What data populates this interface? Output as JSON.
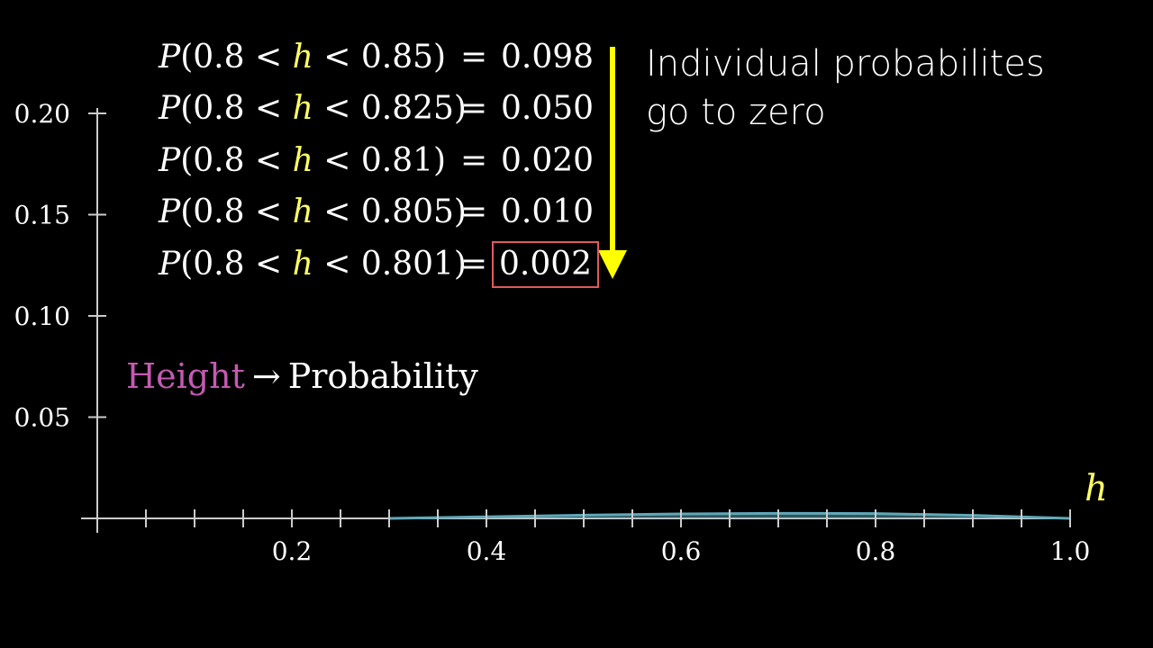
{
  "chart_data": {
    "type": "area",
    "x_axis": {
      "range": [
        0,
        1.0
      ],
      "tick_labels": [
        "0.2",
        "0.4",
        "0.6",
        "0.8",
        "1.0"
      ],
      "label": "h"
    },
    "y_axis": {
      "range": [
        0,
        0.2
      ],
      "tick_labels": [
        "0.05",
        "0.10",
        "0.15",
        "0.20"
      ]
    },
    "series": [
      {
        "x": [
          0.3,
          0.4,
          0.5,
          0.6,
          0.7,
          0.8,
          0.9,
          1.0
        ],
        "y": [
          0.0,
          0.0008,
          0.0016,
          0.0022,
          0.0025,
          0.0024,
          0.0015,
          0.0
        ]
      }
    ],
    "colors": {
      "curve": "#5fa8b8",
      "axis": "#cccccc",
      "variable": "#ffff66",
      "height_label": "#c45ab3",
      "arrow": "#ffff00",
      "box": "#e05a5a"
    }
  },
  "equations": [
    {
      "P": "P",
      "open": "(0.8 <",
      "var": "h",
      "close": "< 0.85)",
      "eq": "=",
      "value": "0.098"
    },
    {
      "P": "P",
      "open": "(0.8 <",
      "var": "h",
      "close": "< 0.825)",
      "eq": "=",
      "value": "0.050"
    },
    {
      "P": "P",
      "open": "(0.8 <",
      "var": "h",
      "close": "< 0.81)",
      "eq": "=",
      "value": "0.020"
    },
    {
      "P": "P",
      "open": "(0.8 <",
      "var": "h",
      "close": "< 0.805)",
      "eq": "=",
      "value": "0.010"
    },
    {
      "P": "P",
      "open": "(0.8 <",
      "var": "h",
      "close": "< 0.801)",
      "eq": "=",
      "value": "0.002"
    }
  ],
  "note": {
    "line1": "Individual probabilites",
    "line2": "go to zero"
  },
  "label": {
    "height": "Height",
    "arrow": "→",
    "probability": "Probability"
  }
}
